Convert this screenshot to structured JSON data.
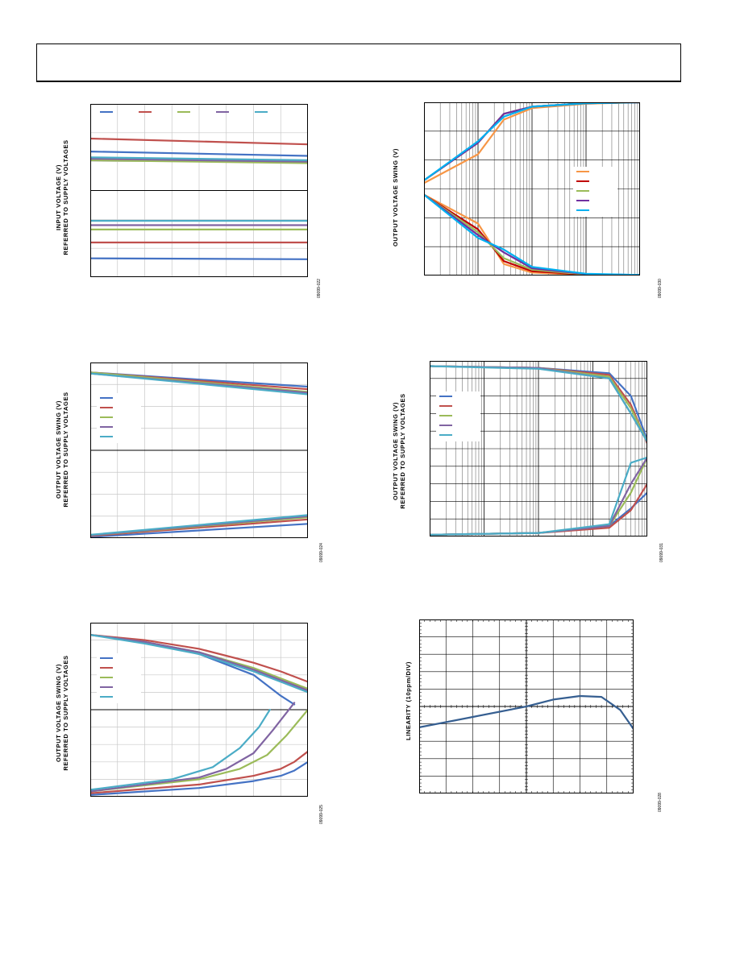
{
  "page": {
    "header_title": ""
  },
  "chart_data": [
    {
      "id": "fig-input-voltage",
      "type": "line",
      "ylabel_lines": [
        "INPUT VOLTAGE (V)",
        "REFERRED TO SUPPLY VOLTAGES"
      ],
      "xlabel": "",
      "figure_code": "09099-022",
      "grid": true,
      "x_scale": "linear",
      "xlim": [
        0,
        8
      ],
      "ylim": [
        0,
        6
      ],
      "legend": "top",
      "colors": [
        "#4472c4",
        "#c0504d",
        "#9bbb59",
        "#8064a2",
        "#4bacc6"
      ],
      "series": [
        {
          "color": "#4472c4",
          "x": [
            0,
            8
          ],
          "y": [
            4.35,
            4.2
          ]
        },
        {
          "color": "#c0504d",
          "x": [
            0,
            8
          ],
          "y": [
            4.8,
            4.6
          ]
        },
        {
          "color": "#9bbb59",
          "x": [
            0,
            8
          ],
          "y": [
            4.05,
            3.95
          ]
        },
        {
          "color": "#8064a2",
          "x": [
            0,
            8
          ],
          "y": [
            4.1,
            4.0
          ]
        },
        {
          "color": "#4bacc6",
          "x": [
            0,
            8
          ],
          "y": [
            4.15,
            4.05
          ]
        },
        {
          "color": "#4472c4",
          "x": [
            0,
            8
          ],
          "y": [
            0.65,
            0.62
          ]
        },
        {
          "color": "#c0504d",
          "x": [
            0,
            8
          ],
          "y": [
            1.2,
            1.2
          ]
        },
        {
          "color": "#9bbb59",
          "x": [
            0,
            8
          ],
          "y": [
            1.65,
            1.65
          ]
        },
        {
          "color": "#8064a2",
          "x": [
            0,
            8
          ],
          "y": [
            1.8,
            1.8
          ]
        },
        {
          "color": "#4bacc6",
          "x": [
            0,
            8
          ],
          "y": [
            1.95,
            1.95
          ]
        }
      ]
    },
    {
      "id": "fig-output-swing-log",
      "type": "line",
      "ylabel_lines": [
        "OUTPUT VOLTAGE SWING (V)"
      ],
      "xlabel": "",
      "figure_code": "09099-030",
      "grid": true,
      "x_scale": "log",
      "xlim": [
        1,
        10000
      ],
      "ylim": [
        0,
        6
      ],
      "legend": "right",
      "colors": [
        "#f79646",
        "#c00000",
        "#9bbb59",
        "#7030a0",
        "#00b0f0"
      ],
      "series": [
        {
          "color": "#f79646",
          "x": [
            1,
            10,
            30,
            100,
            1000,
            10000
          ],
          "y": [
            3.2,
            4.2,
            5.4,
            5.8,
            5.95,
            6.0
          ]
        },
        {
          "color": "#c00000",
          "x": [
            1,
            10,
            30,
            100,
            1000,
            10000
          ],
          "y": [
            3.3,
            4.6,
            5.6,
            5.85,
            5.97,
            6.0
          ]
        },
        {
          "color": "#9bbb59",
          "x": [
            1,
            10,
            30,
            100,
            1000,
            10000
          ],
          "y": [
            3.3,
            4.6,
            5.6,
            5.85,
            5.97,
            6.0
          ]
        },
        {
          "color": "#7030a0",
          "x": [
            1,
            10,
            30,
            100,
            1000,
            10000
          ],
          "y": [
            3.3,
            4.6,
            5.6,
            5.85,
            5.97,
            6.0
          ]
        },
        {
          "color": "#00b0f0",
          "x": [
            1,
            10,
            30,
            100,
            1000,
            10000
          ],
          "y": [
            3.3,
            4.65,
            5.5,
            5.85,
            5.97,
            6.0
          ]
        },
        {
          "color": "#f79646",
          "x": [
            1,
            10,
            30,
            100,
            1000,
            10000
          ],
          "y": [
            2.8,
            1.8,
            0.4,
            0.1,
            0.02,
            0.02
          ]
        },
        {
          "color": "#c00000",
          "x": [
            1,
            10,
            30,
            100,
            1000,
            10000
          ],
          "y": [
            2.8,
            1.6,
            0.5,
            0.15,
            0.03,
            0.02
          ]
        },
        {
          "color": "#9bbb59",
          "x": [
            1,
            10,
            30,
            100,
            1000,
            10000
          ],
          "y": [
            2.8,
            1.5,
            0.6,
            0.2,
            0.04,
            0.02
          ]
        },
        {
          "color": "#7030a0",
          "x": [
            1,
            10,
            30,
            100,
            1000,
            10000
          ],
          "y": [
            2.8,
            1.4,
            0.8,
            0.25,
            0.05,
            0.02
          ]
        },
        {
          "color": "#00b0f0",
          "x": [
            1,
            10,
            30,
            100,
            1000,
            10000
          ],
          "y": [
            2.8,
            1.3,
            0.9,
            0.3,
            0.06,
            0.02
          ]
        }
      ]
    },
    {
      "id": "fig-output-swing-a",
      "type": "line",
      "ylabel_lines": [
        "OUTPUT VOLTAGE SWING (V)",
        "REFERRED TO SUPPLY VOLTAGES"
      ],
      "xlabel": "",
      "figure_code": "09099-024",
      "grid": true,
      "x_scale": "linear",
      "xlim": [
        0,
        8
      ],
      "ylim": [
        0,
        8
      ],
      "legend": "left",
      "colors": [
        "#4472c4",
        "#c0504d",
        "#9bbb59",
        "#8064a2",
        "#4bacc6"
      ],
      "series": [
        {
          "color": "#4472c4",
          "x": [
            0,
            8
          ],
          "y": [
            7.55,
            6.9
          ]
        },
        {
          "color": "#c0504d",
          "x": [
            0,
            8
          ],
          "y": [
            7.55,
            6.78
          ]
        },
        {
          "color": "#9bbb59",
          "x": [
            0,
            8
          ],
          "y": [
            7.55,
            6.66
          ]
        },
        {
          "color": "#8064a2",
          "x": [
            0,
            8
          ],
          "y": [
            7.5,
            6.62
          ]
        },
        {
          "color": "#4bacc6",
          "x": [
            0,
            8
          ],
          "y": [
            7.5,
            6.55
          ]
        },
        {
          "color": "#4472c4",
          "x": [
            0,
            8
          ],
          "y": [
            0.05,
            0.65
          ]
        },
        {
          "color": "#c0504d",
          "x": [
            0,
            8
          ],
          "y": [
            0.1,
            0.85
          ]
        },
        {
          "color": "#9bbb59",
          "x": [
            0,
            8
          ],
          "y": [
            0.12,
            0.95
          ]
        },
        {
          "color": "#8064a2",
          "x": [
            0,
            8
          ],
          "y": [
            0.13,
            1.0
          ]
        },
        {
          "color": "#4bacc6",
          "x": [
            0,
            8
          ],
          "y": [
            0.15,
            1.05
          ]
        }
      ]
    },
    {
      "id": "fig-output-swing-log-b",
      "type": "line",
      "ylabel_lines": [
        "OUTPUT VOLTAGE SWING (V)",
        "REFERRED TO SUPPLY VOLTAGES"
      ],
      "xlabel": "",
      "figure_code": "09099-031",
      "grid": true,
      "x_scale": "log",
      "xlim": [
        1,
        10000
      ],
      "ylim": [
        0,
        10
      ],
      "legend": "left",
      "colors": [
        "#4472c4",
        "#c0504d",
        "#9bbb59",
        "#8064a2",
        "#4bacc6"
      ],
      "series": [
        {
          "color": "#4472c4",
          "x": [
            1,
            100,
            2000,
            5000,
            10000
          ],
          "y": [
            9.7,
            9.6,
            9.3,
            8.0,
            5.5
          ]
        },
        {
          "color": "#c0504d",
          "x": [
            1,
            100,
            2000,
            5000,
            10000
          ],
          "y": [
            9.7,
            9.6,
            9.2,
            7.5,
            5.3
          ]
        },
        {
          "color": "#9bbb59",
          "x": [
            1,
            100,
            2000,
            5000,
            10000
          ],
          "y": [
            9.7,
            9.6,
            9.1,
            7.3,
            5.4
          ]
        },
        {
          "color": "#8064a2",
          "x": [
            1,
            100,
            2000,
            5000,
            10000
          ],
          "y": [
            9.7,
            9.6,
            9.0,
            7.0,
            5.4
          ]
        },
        {
          "color": "#4bacc6",
          "x": [
            1,
            100,
            2000,
            5000,
            10000
          ],
          "y": [
            9.7,
            9.55,
            9.0,
            7.0,
            5.4
          ]
        },
        {
          "color": "#4472c4",
          "x": [
            1,
            100,
            2000,
            5000,
            10000
          ],
          "y": [
            0.1,
            0.2,
            0.6,
            1.6,
            2.5
          ]
        },
        {
          "color": "#c0504d",
          "x": [
            1,
            100,
            2000,
            5000,
            10000
          ],
          "y": [
            0.1,
            0.2,
            0.5,
            1.5,
            3.0
          ]
        },
        {
          "color": "#9bbb59",
          "x": [
            1,
            100,
            2000,
            5000,
            10000
          ],
          "y": [
            0.1,
            0.2,
            0.6,
            2.5,
            4.5
          ]
        },
        {
          "color": "#8064a2",
          "x": [
            1,
            100,
            2000,
            5000,
            10000
          ],
          "y": [
            0.1,
            0.2,
            0.6,
            3.0,
            4.5
          ]
        },
        {
          "color": "#4bacc6",
          "x": [
            1,
            100,
            2000,
            5000,
            10000
          ],
          "y": [
            0.1,
            0.2,
            0.7,
            4.2,
            4.5
          ]
        }
      ]
    },
    {
      "id": "fig-output-swing-c",
      "type": "line",
      "ylabel_lines": [
        "OUTPUT VOLTAGE SWING (V)",
        "REFERRED TO SUPPLY VOLTAGES"
      ],
      "xlabel": "",
      "figure_code": "09099-025",
      "grid": true,
      "x_scale": "linear",
      "xlim": [
        0,
        8
      ],
      "ylim": [
        0,
        10
      ],
      "legend": "left",
      "colors": [
        "#4472c4",
        "#c0504d",
        "#9bbb59",
        "#8064a2",
        "#4bacc6"
      ],
      "series": [
        {
          "color": "#4472c4",
          "x": [
            0,
            2,
            4,
            6,
            7,
            7.5
          ],
          "y": [
            9.3,
            8.9,
            8.2,
            7.0,
            5.8,
            5.3
          ]
        },
        {
          "color": "#c0504d",
          "x": [
            0,
            2,
            4,
            6,
            7,
            8
          ],
          "y": [
            9.3,
            9.0,
            8.5,
            7.7,
            7.2,
            6.6
          ]
        },
        {
          "color": "#9bbb59",
          "x": [
            0,
            2,
            4,
            6,
            7,
            8
          ],
          "y": [
            9.3,
            8.9,
            8.3,
            7.4,
            6.8,
            6.2
          ]
        },
        {
          "color": "#8064a2",
          "x": [
            0,
            2,
            4,
            6,
            7,
            8
          ],
          "y": [
            9.3,
            8.9,
            8.3,
            7.3,
            6.7,
            6.1
          ]
        },
        {
          "color": "#4bacc6",
          "x": [
            0,
            2,
            4,
            6,
            7,
            8
          ],
          "y": [
            9.3,
            8.8,
            8.2,
            7.2,
            6.6,
            6.0
          ]
        },
        {
          "color": "#4472c4",
          "x": [
            0,
            4,
            6,
            7,
            7.5,
            8
          ],
          "y": [
            0.1,
            0.5,
            0.9,
            1.2,
            1.5,
            2.0
          ]
        },
        {
          "color": "#c0504d",
          "x": [
            0,
            4,
            6,
            7,
            7.5,
            8
          ],
          "y": [
            0.2,
            0.7,
            1.2,
            1.6,
            2.0,
            2.6
          ]
        },
        {
          "color": "#9bbb59",
          "x": [
            0,
            4,
            5.5,
            6.5,
            7.2,
            8
          ],
          "y": [
            0.3,
            1.0,
            1.6,
            2.4,
            3.5,
            5.0
          ]
        },
        {
          "color": "#8064a2",
          "x": [
            0,
            4,
            5,
            6,
            6.7,
            7.5
          ],
          "y": [
            0.3,
            1.1,
            1.6,
            2.5,
            3.8,
            5.4
          ]
        },
        {
          "color": "#4bacc6",
          "x": [
            0,
            3,
            4.5,
            5.5,
            6.2,
            6.6
          ],
          "y": [
            0.4,
            1.0,
            1.7,
            2.8,
            4.0,
            5.0
          ]
        }
      ]
    },
    {
      "id": "fig-linearity",
      "type": "line",
      "ylabel_lines": [
        "LINEARITY (10ppm/DIV)"
      ],
      "xlabel": "",
      "figure_code": "09099-028",
      "grid": true,
      "x_scale": "linear",
      "xlim": [
        -4,
        4
      ],
      "ylim": [
        -5,
        5
      ],
      "legend": "none",
      "colors": [
        "#365f91"
      ],
      "series": [
        {
          "color": "#365f91",
          "x": [
            -4,
            -2,
            0,
            1,
            2,
            2.8,
            3.5,
            4
          ],
          "y": [
            -1.2,
            -0.6,
            0,
            0.4,
            0.6,
            0.55,
            -0.2,
            -1.3
          ]
        }
      ]
    }
  ]
}
